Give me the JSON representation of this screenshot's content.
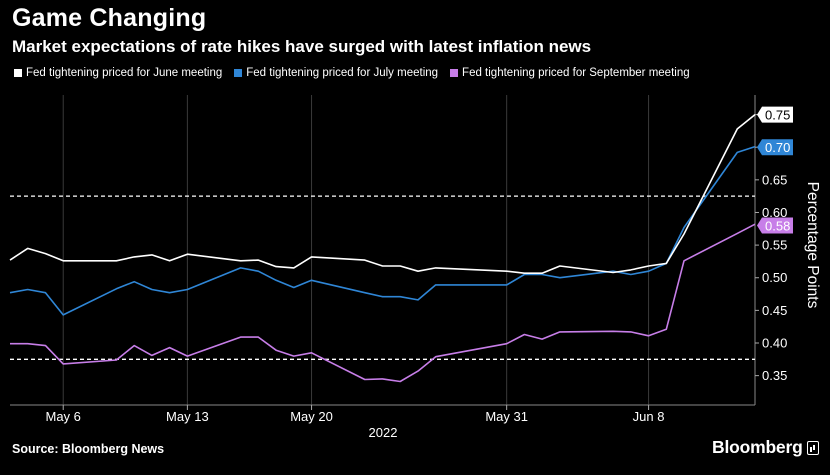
{
  "header": {
    "title": "Game Changing",
    "subtitle": "Market expectations of rate hikes have surged with latest inflation news"
  },
  "footer": {
    "source": "Source: Bloomberg News",
    "logo": "Bloomberg"
  },
  "colors": {
    "background": "#000000",
    "june": "#ffffff",
    "july": "#2f86d6",
    "september": "#c77ee8",
    "grid": "#3a3a3a",
    "reference_lines": "#ffffff"
  },
  "chart_data": {
    "type": "line",
    "ylabel": "Percentage Points",
    "xlabel": "2022",
    "ylim": [
      0.305,
      0.78
    ],
    "yticks": [
      0.35,
      0.4,
      0.45,
      0.5,
      0.55,
      0.6,
      0.65,
      0.7,
      0.75
    ],
    "ytick_labels": [
      "0.35",
      "0.40",
      "0.45",
      "0.50",
      "0.55",
      "0.60",
      "0.65",
      "0.70",
      "0.75"
    ],
    "xlim": [
      "2022-05-03",
      "2022-06-14"
    ],
    "xticks": [
      {
        "date": "2022-05-06",
        "label": "May 6"
      },
      {
        "date": "2022-05-13",
        "label": "May 13"
      },
      {
        "date": "2022-05-20",
        "label": "May 20"
      },
      {
        "date": "2022-05-31",
        "label": "May 31"
      },
      {
        "date": "2022-06-08",
        "label": "Jun 8"
      }
    ],
    "grid": "vertical",
    "reference_lines": [
      0.625,
      0.375
    ],
    "x": [
      "2022-05-03",
      "2022-05-04",
      "2022-05-05",
      "2022-05-06",
      "2022-05-09",
      "2022-05-10",
      "2022-05-11",
      "2022-05-12",
      "2022-05-13",
      "2022-05-16",
      "2022-05-17",
      "2022-05-18",
      "2022-05-19",
      "2022-05-20",
      "2022-05-23",
      "2022-05-24",
      "2022-05-25",
      "2022-05-26",
      "2022-05-27",
      "2022-05-31",
      "2022-06-01",
      "2022-06-02",
      "2022-06-03",
      "2022-06-06",
      "2022-06-07",
      "2022-06-08",
      "2022-06-09",
      "2022-06-10",
      "2022-06-13",
      "2022-06-14"
    ],
    "series": [
      {
        "name": "Fed tightening priced for June meeting",
        "color": "#ffffff",
        "end_label": "0.75",
        "values": [
          0.527,
          0.545,
          0.537,
          0.526,
          0.526,
          0.532,
          0.535,
          0.526,
          0.536,
          0.526,
          0.527,
          0.517,
          0.515,
          0.532,
          0.527,
          0.518,
          0.518,
          0.51,
          0.515,
          0.51,
          0.507,
          0.507,
          0.518,
          0.508,
          0.512,
          0.518,
          0.522,
          0.567,
          0.728,
          0.75
        ]
      },
      {
        "name": "Fed tightening priced for July meeting",
        "color": "#2f86d6",
        "end_label": "0.70",
        "values": [
          0.477,
          0.482,
          0.477,
          0.443,
          0.483,
          0.494,
          0.482,
          0.477,
          0.482,
          0.515,
          0.51,
          0.496,
          0.485,
          0.496,
          0.477,
          0.471,
          0.471,
          0.466,
          0.489,
          0.489,
          0.505,
          0.505,
          0.5,
          0.51,
          0.505,
          0.51,
          0.522,
          0.577,
          0.692,
          0.701
        ]
      },
      {
        "name": "Fed tightening priced for September meeting",
        "color": "#c77ee8",
        "end_label": "0.58",
        "values": [
          0.399,
          0.399,
          0.396,
          0.368,
          0.374,
          0.396,
          0.381,
          0.393,
          0.38,
          0.409,
          0.409,
          0.389,
          0.38,
          0.385,
          0.344,
          0.345,
          0.341,
          0.357,
          0.379,
          0.399,
          0.413,
          0.406,
          0.417,
          0.418,
          0.417,
          0.411,
          0.421,
          0.526,
          0.568,
          0.582
        ]
      }
    ]
  }
}
